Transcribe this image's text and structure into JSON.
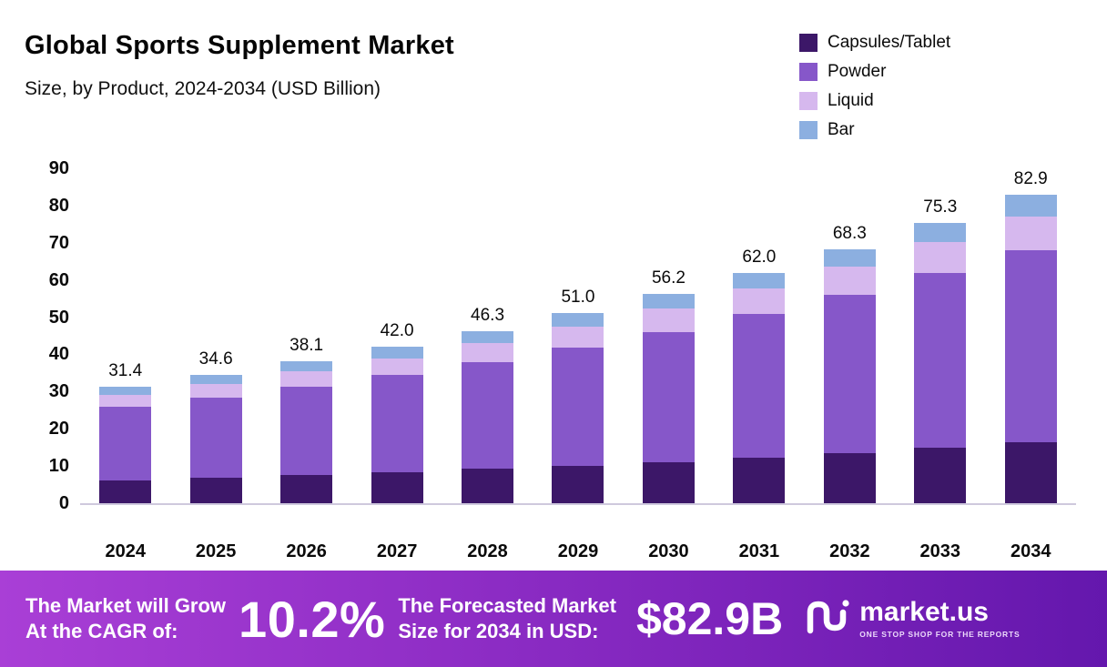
{
  "header": {
    "title": "Global Sports Supplement Market",
    "subtitle": "Size, by Product, 2024-2034 (USD Billion)"
  },
  "chart_data": {
    "type": "bar",
    "stacked": true,
    "title": "Global Sports Supplement Market",
    "subtitle": "Size, by Product, 2024-2034 (USD Billion)",
    "xlabel": "",
    "ylabel": "USD Billion",
    "ylim": [
      0,
      90
    ],
    "yticks": [
      0,
      10,
      20,
      30,
      40,
      50,
      60,
      70,
      80,
      90
    ],
    "grid": false,
    "legend_position": "top-right",
    "categories": [
      "2024",
      "2025",
      "2026",
      "2027",
      "2028",
      "2029",
      "2030",
      "2031",
      "2032",
      "2033",
      "2034"
    ],
    "series": [
      {
        "name": "Capsules/Tablet",
        "color": "#3c1768",
        "values": [
          6.1,
          6.8,
          7.5,
          8.3,
          9.2,
          10.1,
          11.1,
          12.3,
          13.5,
          14.9,
          16.4
        ]
      },
      {
        "name": "Powder",
        "color": "#8657c9",
        "values": [
          19.8,
          21.6,
          23.8,
          26.2,
          28.8,
          31.7,
          35.0,
          38.6,
          42.5,
          46.9,
          51.6
        ]
      },
      {
        "name": "Liquid",
        "color": "#d6b8ee",
        "values": [
          3.3,
          3.7,
          4.1,
          4.5,
          5.0,
          5.6,
          6.2,
          6.8,
          7.5,
          8.3,
          9.1
        ]
      },
      {
        "name": "Bar",
        "color": "#8cafe0",
        "values": [
          2.2,
          2.5,
          2.7,
          3.0,
          3.3,
          3.6,
          3.9,
          4.3,
          4.8,
          5.2,
          5.8
        ]
      }
    ],
    "totals": [
      31.4,
      34.6,
      38.1,
      42.0,
      46.3,
      51.0,
      56.2,
      62.0,
      68.3,
      75.3,
      82.9
    ]
  },
  "banner": {
    "cagr_label_line1": "The Market will Grow",
    "cagr_label_line2": "At the CAGR of:",
    "cagr_value": "10.2%",
    "forecast_label_line1": "The Forecasted Market",
    "forecast_label_line2": "Size for 2034 in USD:",
    "forecast_value": "$82.9B",
    "gradient": [
      "#a93fd6",
      "#6417ad"
    ]
  },
  "logo": {
    "name": "market.us",
    "tagline": "ONE STOP SHOP FOR THE REPORTS"
  }
}
